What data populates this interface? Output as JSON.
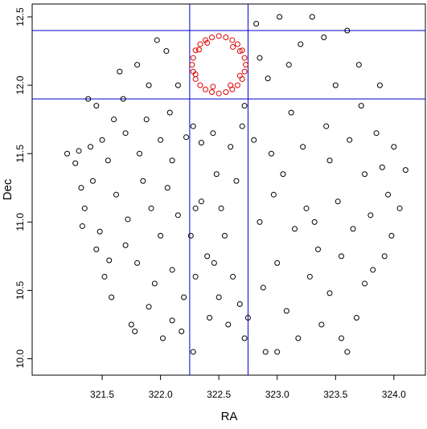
{
  "chart_data": {
    "type": "scatter",
    "xlabel": "RA",
    "ylabel": "Dec",
    "xlim": [
      320.9,
      324.27
    ],
    "ylim": [
      9.88,
      12.594
    ],
    "xticks": [
      321.5,
      {
        "value": 322,
        "label": "322.0"
      },
      322.5,
      {
        "value": 323,
        "label": "323.0"
      },
      323.5,
      {
        "value": 324,
        "label": "324.0"
      }
    ],
    "yticks": [
      {
        "value": 10,
        "label": "10.0"
      },
      10.5,
      {
        "value": 11,
        "label": "11.0"
      },
      11.5,
      {
        "value": 12,
        "label": "12.0"
      },
      12.5
    ],
    "vlines": [
      322.25,
      322.75
    ],
    "hlines": [
      11.9,
      12.4
    ],
    "line_color": "#0000cc",
    "series": [
      {
        "color": "#000000",
        "x": [
          321.2,
          321.27,
          321.3,
          321.32,
          321.35,
          321.33,
          321.4,
          321.42,
          321.45,
          321.38,
          321.45,
          321.5,
          321.55,
          321.48,
          321.52,
          321.56,
          321.6,
          321.62,
          321.58,
          321.65,
          321.68,
          321.7,
          321.72,
          321.7,
          321.75,
          321.78,
          321.8,
          321.82,
          321.85,
          321.8,
          321.9,
          321.88,
          321.92,
          321.95,
          321.9,
          321.97,
          322.0,
          322.0,
          322.02,
          322.05,
          322.08,
          322.1,
          322.06,
          322.1,
          322.1,
          322.15,
          322.15,
          322.2,
          322.18,
          322.22,
          322.28,
          322.3,
          322.26,
          322.3,
          322.28,
          322.35,
          322.35,
          322.4,
          322.42,
          322.45,
          322.48,
          322.46,
          322.5,
          322.52,
          322.55,
          322.58,
          322.6,
          322.62,
          322.65,
          322.68,
          322.72,
          322.72,
          322.7,
          322.75,
          322.8,
          322.82,
          322.85,
          322.85,
          322.88,
          322.9,
          322.92,
          322.95,
          322.97,
          323.0,
          323.02,
          323.05,
          323.08,
          323.1,
          323.12,
          323.15,
          323.18,
          323.2,
          323.22,
          323.25,
          323.28,
          323.3,
          323.32,
          323.35,
          323.38,
          323.4,
          323.42,
          323.45,
          323.45,
          323.5,
          323.52,
          323.55,
          323.55,
          323.6,
          323.62,
          323.65,
          323.68,
          323.7,
          323.72,
          323.75,
          323.75,
          323.8,
          323.82,
          323.85,
          323.88,
          323.9,
          323.92,
          323.95,
          324.0,
          324.05,
          324.1,
          323.98,
          323.6,
          323.0
        ],
        "y": [
          11.5,
          11.43,
          11.52,
          11.25,
          11.1,
          10.97,
          11.55,
          11.3,
          10.8,
          11.9,
          11.85,
          11.6,
          11.45,
          10.93,
          10.6,
          10.72,
          11.75,
          11.2,
          10.45,
          12.1,
          11.9,
          11.65,
          11.02,
          10.83,
          10.25,
          10.2,
          12.15,
          11.5,
          11.3,
          10.7,
          12.0,
          11.75,
          11.1,
          10.55,
          10.38,
          12.33,
          11.6,
          10.9,
          10.15,
          12.25,
          11.8,
          11.45,
          11.25,
          10.65,
          10.28,
          12.0,
          11.05,
          10.45,
          10.2,
          11.62,
          11.7,
          11.1,
          10.9,
          10.6,
          10.05,
          11.58,
          11.15,
          10.75,
          10.3,
          11.65,
          11.35,
          10.7,
          10.45,
          11.1,
          10.9,
          10.25,
          11.55,
          10.6,
          11.3,
          10.4,
          10.15,
          11.85,
          11.7,
          10.3,
          11.6,
          12.45,
          12.2,
          11.0,
          10.52,
          10.05,
          12.05,
          11.5,
          11.2,
          10.7,
          12.5,
          11.35,
          10.35,
          12.15,
          11.8,
          10.95,
          10.15,
          12.3,
          11.55,
          11.1,
          10.6,
          12.5,
          11.0,
          10.8,
          10.25,
          12.35,
          11.7,
          11.45,
          10.48,
          12.0,
          11.15,
          10.75,
          10.15,
          12.4,
          11.6,
          10.95,
          10.3,
          12.15,
          11.85,
          11.35,
          10.55,
          11.05,
          10.65,
          11.65,
          12.0,
          11.4,
          10.75,
          11.2,
          11.55,
          11.1,
          11.38,
          10.9,
          10.05,
          10.05
        ]
      },
      {
        "color": "#dd0000",
        "x": [
          322.73,
          322.72,
          322.7,
          322.66,
          322.615,
          322.56,
          322.5,
          322.44,
          322.385,
          322.34,
          322.3,
          322.28,
          322.27,
          322.28,
          322.3,
          322.34,
          322.385,
          322.44,
          322.5,
          322.56,
          322.615,
          322.66,
          322.7,
          322.72,
          322.33,
          322.4,
          322.62,
          322.68,
          322.3,
          322.45,
          322.6,
          322.68
        ],
        "y": [
          12.15,
          12.2,
          12.255,
          12.3,
          12.33,
          12.35,
          12.36,
          12.35,
          12.33,
          12.3,
          12.255,
          12.2,
          12.15,
          12.1,
          12.045,
          12.0,
          11.97,
          11.95,
          11.94,
          11.95,
          11.97,
          12.0,
          12.045,
          12.1,
          12.26,
          12.31,
          12.28,
          12.25,
          12.08,
          11.99,
          12.0,
          12.07
        ]
      }
    ]
  }
}
